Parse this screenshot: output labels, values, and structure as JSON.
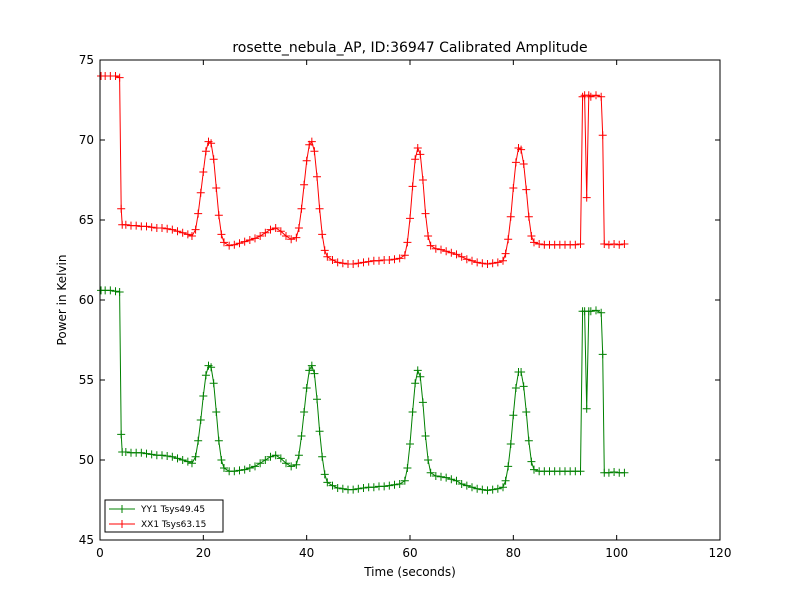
{
  "chart_data": {
    "type": "line",
    "title": "rosette_nebula_AP, ID:36947 Calibrated Amplitude",
    "xlabel": "Time (seconds)",
    "ylabel": "Power in Kelvin",
    "xlim": [
      0,
      120
    ],
    "ylim": [
      45,
      75
    ],
    "xticks": [
      0,
      20,
      40,
      60,
      80,
      100,
      120
    ],
    "yticks": [
      45,
      50,
      55,
      60,
      65,
      70,
      75
    ],
    "grid": false,
    "legend_position": "lower-left",
    "marker": "+",
    "series": [
      {
        "name": "YY1 Tsys49.45",
        "color": "#008000",
        "points": [
          [
            0.2,
            60.6
          ],
          [
            1,
            60.6
          ],
          [
            2,
            60.6
          ],
          [
            3,
            60.55
          ],
          [
            3.8,
            60.5
          ],
          [
            4.1,
            51.6
          ],
          [
            4.3,
            50.5
          ],
          [
            5,
            50.5
          ],
          [
            6,
            50.45
          ],
          [
            7,
            50.45
          ],
          [
            8,
            50.45
          ],
          [
            9,
            50.4
          ],
          [
            10,
            50.35
          ],
          [
            11,
            50.3
          ],
          [
            12,
            50.3
          ],
          [
            13,
            50.25
          ],
          [
            14,
            50.2
          ],
          [
            15,
            50.1
          ],
          [
            16,
            50.0
          ],
          [
            17,
            49.9
          ],
          [
            17.8,
            49.8
          ],
          [
            18.5,
            50.2
          ],
          [
            19,
            51.2
          ],
          [
            19.5,
            52.5
          ],
          [
            20,
            54.0
          ],
          [
            20.5,
            55.3
          ],
          [
            21,
            55.9
          ],
          [
            21.5,
            55.8
          ],
          [
            22,
            54.8
          ],
          [
            22.5,
            53.0
          ],
          [
            23,
            51.2
          ],
          [
            23.5,
            50.0
          ],
          [
            24,
            49.5
          ],
          [
            25,
            49.3
          ],
          [
            26,
            49.3
          ],
          [
            27,
            49.35
          ],
          [
            28,
            49.4
          ],
          [
            29,
            49.5
          ],
          [
            30,
            49.6
          ],
          [
            31,
            49.8
          ],
          [
            32,
            50.0
          ],
          [
            33,
            50.2
          ],
          [
            34,
            50.3
          ],
          [
            35,
            50.1
          ],
          [
            36,
            49.8
          ],
          [
            37,
            49.6
          ],
          [
            38,
            49.7
          ],
          [
            38.5,
            50.3
          ],
          [
            39,
            51.5
          ],
          [
            39.5,
            53.0
          ],
          [
            40,
            54.5
          ],
          [
            40.5,
            55.6
          ],
          [
            41,
            55.9
          ],
          [
            41.5,
            55.4
          ],
          [
            42,
            53.8
          ],
          [
            42.5,
            51.8
          ],
          [
            43,
            50.2
          ],
          [
            43.5,
            49.1
          ],
          [
            44,
            48.6
          ],
          [
            45,
            48.4
          ],
          [
            46,
            48.25
          ],
          [
            47,
            48.2
          ],
          [
            48,
            48.15
          ],
          [
            49,
            48.15
          ],
          [
            50,
            48.2
          ],
          [
            51,
            48.25
          ],
          [
            52,
            48.3
          ],
          [
            53,
            48.3
          ],
          [
            54,
            48.35
          ],
          [
            55,
            48.35
          ],
          [
            56,
            48.4
          ],
          [
            57,
            48.45
          ],
          [
            58,
            48.5
          ],
          [
            59,
            48.7
          ],
          [
            59.5,
            49.5
          ],
          [
            60,
            51.0
          ],
          [
            60.5,
            53.0
          ],
          [
            61,
            54.8
          ],
          [
            61.5,
            55.6
          ],
          [
            62,
            55.2
          ],
          [
            62.5,
            53.6
          ],
          [
            63,
            51.5
          ],
          [
            63.5,
            50.0
          ],
          [
            64,
            49.2
          ],
          [
            65,
            49.0
          ],
          [
            66,
            48.95
          ],
          [
            67,
            48.9
          ],
          [
            68,
            48.8
          ],
          [
            69,
            48.7
          ],
          [
            70,
            48.5
          ],
          [
            71,
            48.4
          ],
          [
            72,
            48.3
          ],
          [
            73,
            48.2
          ],
          [
            74,
            48.15
          ],
          [
            75,
            48.1
          ],
          [
            76,
            48.15
          ],
          [
            77,
            48.2
          ],
          [
            78,
            48.3
          ],
          [
            78.5,
            48.7
          ],
          [
            79,
            49.6
          ],
          [
            79.5,
            51.0
          ],
          [
            80,
            52.8
          ],
          [
            80.5,
            54.5
          ],
          [
            81,
            55.5
          ],
          [
            81.5,
            55.5
          ],
          [
            82,
            54.6
          ],
          [
            82.5,
            53.0
          ],
          [
            83,
            51.2
          ],
          [
            83.5,
            49.9
          ],
          [
            84,
            49.4
          ],
          [
            85,
            49.3
          ],
          [
            86,
            49.3
          ],
          [
            87,
            49.3
          ],
          [
            88,
            49.3
          ],
          [
            89,
            49.3
          ],
          [
            90,
            49.3
          ],
          [
            91,
            49.3
          ],
          [
            92,
            49.3
          ],
          [
            93,
            49.3
          ],
          [
            93.4,
            59.3
          ],
          [
            93.8,
            59.3
          ],
          [
            94.2,
            53.2
          ],
          [
            94.6,
            59.3
          ],
          [
            95,
            59.3
          ],
          [
            96,
            59.35
          ],
          [
            97,
            59.2
          ],
          [
            97.3,
            56.6
          ],
          [
            97.6,
            49.2
          ],
          [
            98.5,
            49.2
          ],
          [
            99.5,
            49.25
          ],
          [
            100.5,
            49.2
          ],
          [
            101.5,
            49.2
          ]
        ]
      },
      {
        "name": "XX1 Tsys63.15",
        "color": "#ff0000",
        "points": [
          [
            0.2,
            74.0
          ],
          [
            1,
            74.0
          ],
          [
            2,
            74.0
          ],
          [
            3,
            74.0
          ],
          [
            3.8,
            73.9
          ],
          [
            4.1,
            65.7
          ],
          [
            4.3,
            64.7
          ],
          [
            5,
            64.7
          ],
          [
            6,
            64.65
          ],
          [
            7,
            64.65
          ],
          [
            8,
            64.6
          ],
          [
            9,
            64.6
          ],
          [
            10,
            64.55
          ],
          [
            11,
            64.5
          ],
          [
            12,
            64.5
          ],
          [
            13,
            64.45
          ],
          [
            14,
            64.4
          ],
          [
            15,
            64.3
          ],
          [
            16,
            64.2
          ],
          [
            17,
            64.1
          ],
          [
            17.8,
            64.0
          ],
          [
            18.5,
            64.4
          ],
          [
            19,
            65.4
          ],
          [
            19.5,
            66.7
          ],
          [
            20,
            68.0
          ],
          [
            20.5,
            69.3
          ],
          [
            21,
            69.9
          ],
          [
            21.5,
            69.8
          ],
          [
            22,
            68.8
          ],
          [
            22.5,
            67.0
          ],
          [
            23,
            65.3
          ],
          [
            23.5,
            64.1
          ],
          [
            24,
            63.6
          ],
          [
            25,
            63.4
          ],
          [
            26,
            63.45
          ],
          [
            27,
            63.55
          ],
          [
            28,
            63.65
          ],
          [
            29,
            63.75
          ],
          [
            30,
            63.85
          ],
          [
            31,
            64.0
          ],
          [
            32,
            64.2
          ],
          [
            33,
            64.4
          ],
          [
            34,
            64.5
          ],
          [
            35,
            64.3
          ],
          [
            36,
            64.0
          ],
          [
            37,
            63.8
          ],
          [
            38,
            63.9
          ],
          [
            38.5,
            64.5
          ],
          [
            39,
            65.7
          ],
          [
            39.5,
            67.2
          ],
          [
            40,
            68.7
          ],
          [
            40.5,
            69.7
          ],
          [
            41,
            69.9
          ],
          [
            41.5,
            69.3
          ],
          [
            42,
            67.7
          ],
          [
            42.5,
            65.7
          ],
          [
            43,
            64.1
          ],
          [
            43.5,
            63.1
          ],
          [
            44,
            62.7
          ],
          [
            45,
            62.5
          ],
          [
            46,
            62.35
          ],
          [
            47,
            62.3
          ],
          [
            48,
            62.25
          ],
          [
            49,
            62.25
          ],
          [
            50,
            62.3
          ],
          [
            51,
            62.35
          ],
          [
            52,
            62.4
          ],
          [
            53,
            62.45
          ],
          [
            54,
            62.45
          ],
          [
            55,
            62.5
          ],
          [
            56,
            62.5
          ],
          [
            57,
            62.55
          ],
          [
            58,
            62.6
          ],
          [
            59,
            62.8
          ],
          [
            59.5,
            63.6
          ],
          [
            60,
            65.1
          ],
          [
            60.5,
            67.1
          ],
          [
            61,
            68.8
          ],
          [
            61.5,
            69.5
          ],
          [
            62,
            69.1
          ],
          [
            62.5,
            67.5
          ],
          [
            63,
            65.4
          ],
          [
            63.5,
            64.0
          ],
          [
            64,
            63.4
          ],
          [
            65,
            63.2
          ],
          [
            66,
            63.15
          ],
          [
            67,
            63.05
          ],
          [
            68,
            62.95
          ],
          [
            69,
            62.85
          ],
          [
            70,
            62.7
          ],
          [
            71,
            62.55
          ],
          [
            72,
            62.45
          ],
          [
            73,
            62.35
          ],
          [
            74,
            62.3
          ],
          [
            75,
            62.25
          ],
          [
            76,
            62.3
          ],
          [
            77,
            62.35
          ],
          [
            78,
            62.45
          ],
          [
            78.5,
            62.9
          ],
          [
            79,
            63.8
          ],
          [
            79.5,
            65.2
          ],
          [
            80,
            67.0
          ],
          [
            80.5,
            68.6
          ],
          [
            81,
            69.5
          ],
          [
            81.5,
            69.4
          ],
          [
            82,
            68.5
          ],
          [
            82.5,
            66.9
          ],
          [
            83,
            65.2
          ],
          [
            83.5,
            64.0
          ],
          [
            84,
            63.6
          ],
          [
            85,
            63.5
          ],
          [
            86,
            63.45
          ],
          [
            87,
            63.45
          ],
          [
            88,
            63.45
          ],
          [
            89,
            63.45
          ],
          [
            90,
            63.45
          ],
          [
            91,
            63.45
          ],
          [
            92,
            63.45
          ],
          [
            93,
            63.5
          ],
          [
            93.4,
            72.7
          ],
          [
            93.8,
            72.8
          ],
          [
            94.2,
            66.4
          ],
          [
            94.6,
            72.8
          ],
          [
            95,
            72.7
          ],
          [
            96,
            72.8
          ],
          [
            97,
            72.7
          ],
          [
            97.3,
            70.3
          ],
          [
            97.6,
            63.5
          ],
          [
            98.5,
            63.45
          ],
          [
            99.5,
            63.5
          ],
          [
            100.5,
            63.45
          ],
          [
            101.5,
            63.5
          ]
        ]
      }
    ]
  }
}
